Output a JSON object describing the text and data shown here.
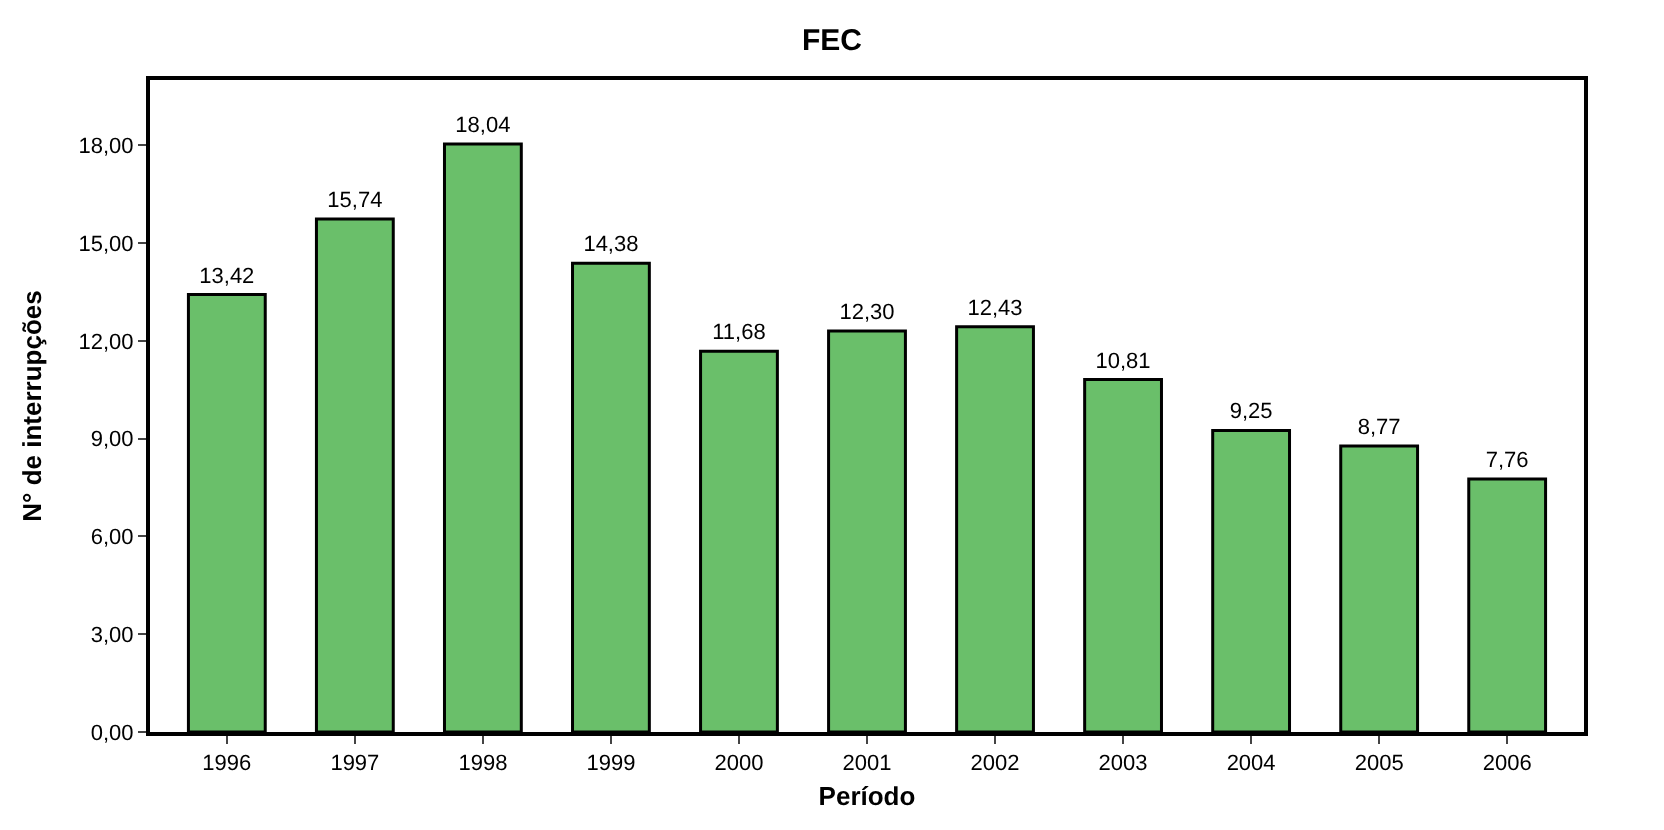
{
  "chart_data": {
    "type": "bar",
    "title": "FEC",
    "xlabel": "Período",
    "ylabel": "N° de interrupções",
    "categories": [
      "1996",
      "1997",
      "1998",
      "1999",
      "2000",
      "2001",
      "2002",
      "2003",
      "2004",
      "2005",
      "2006"
    ],
    "values": [
      13.42,
      15.74,
      18.04,
      14.38,
      11.68,
      12.3,
      12.43,
      10.81,
      9.25,
      8.77,
      7.76
    ],
    "value_labels": [
      "13,42",
      "15,74",
      "18,04",
      "14,38",
      "11,68",
      "12,30",
      "12,43",
      "10,81",
      "9,25",
      "8,77",
      "7,76"
    ],
    "color": "#6abf6a",
    "ylim": [
      0,
      20
    ],
    "yticks": [
      {
        "value": 0,
        "label": "0,00"
      },
      {
        "value": 3,
        "label": "3,00"
      },
      {
        "value": 6,
        "label": "6,00"
      },
      {
        "value": 9,
        "label": "9,00"
      },
      {
        "value": 12,
        "label": "12,00"
      },
      {
        "value": 15,
        "label": "15,00"
      },
      {
        "value": 18,
        "label": "18,00"
      }
    ],
    "grid": null
  }
}
